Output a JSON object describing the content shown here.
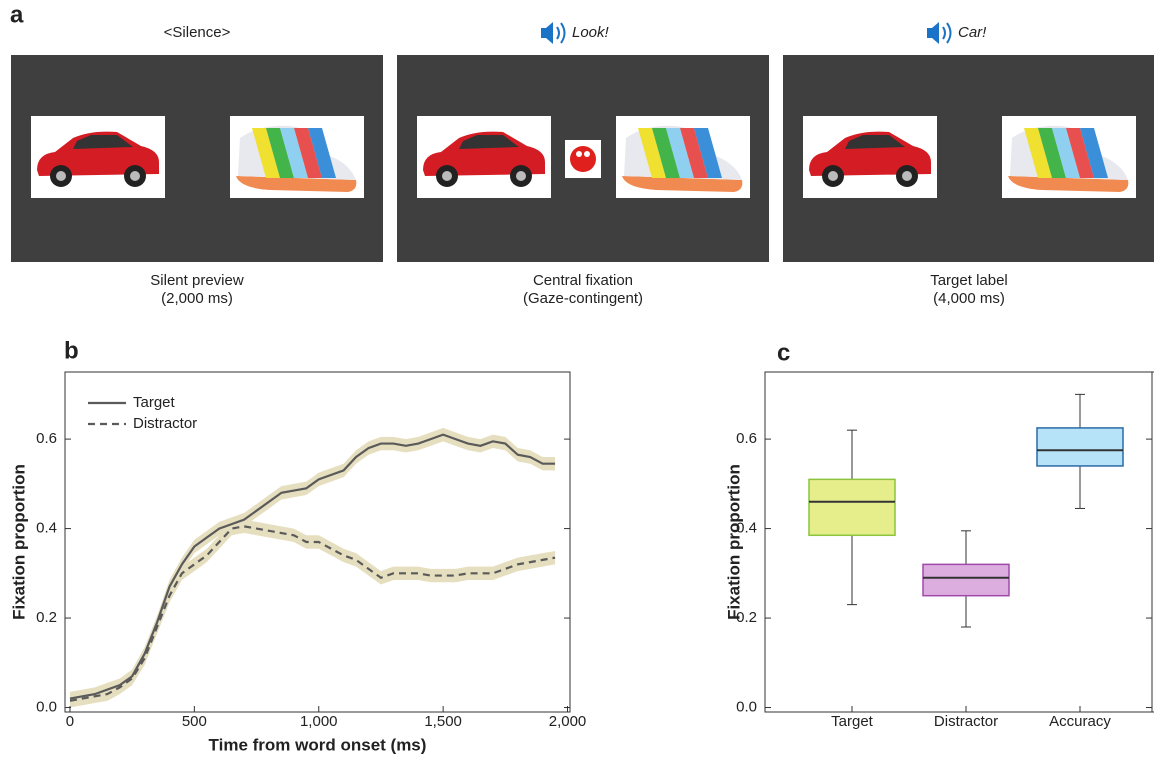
{
  "panel_a": {
    "label": "a",
    "frames": [
      {
        "audio": "<Silence>",
        "caption": "Silent preview",
        "duration": "(2,000 ms)"
      },
      {
        "audio": "Look!",
        "caption": "Central fixation",
        "duration": "(Gaze-contingent)"
      },
      {
        "audio": "Car!",
        "caption": "Target label",
        "duration": "(4,000 ms)"
      }
    ]
  },
  "chart_data": [
    {
      "type": "line",
      "panel_label": "b",
      "xlabel": "Time from word onset (ms)",
      "ylabel": "Fixation proportion",
      "x": [
        0,
        50,
        100,
        150,
        200,
        250,
        300,
        350,
        400,
        450,
        500,
        550,
        600,
        650,
        700,
        750,
        800,
        850,
        900,
        950,
        1000,
        1050,
        1100,
        1150,
        1200,
        1250,
        1300,
        1350,
        1400,
        1450,
        1500,
        1550,
        1600,
        1650,
        1700,
        1750,
        1800,
        1850,
        1900,
        1950
      ],
      "series": [
        {
          "name": "Target",
          "color": "#5a5a5a",
          "dash": false,
          "band": 0.015,
          "band_color": "#e6dfbf",
          "values": [
            0.02,
            0.025,
            0.03,
            0.04,
            0.05,
            0.07,
            0.12,
            0.19,
            0.27,
            0.32,
            0.36,
            0.38,
            0.4,
            0.41,
            0.42,
            0.44,
            0.46,
            0.48,
            0.485,
            0.49,
            0.51,
            0.52,
            0.53,
            0.56,
            0.58,
            0.59,
            0.59,
            0.585,
            0.59,
            0.6,
            0.61,
            0.6,
            0.59,
            0.585,
            0.595,
            0.59,
            0.565,
            0.56,
            0.545,
            0.545
          ]
        },
        {
          "name": "Distractor",
          "color": "#5a5a5a",
          "dash": true,
          "band": 0.015,
          "band_color": "#e6dfbf",
          "values": [
            0.015,
            0.02,
            0.025,
            0.03,
            0.045,
            0.065,
            0.11,
            0.18,
            0.25,
            0.3,
            0.32,
            0.34,
            0.37,
            0.4,
            0.405,
            0.4,
            0.395,
            0.39,
            0.385,
            0.37,
            0.37,
            0.355,
            0.34,
            0.33,
            0.31,
            0.29,
            0.3,
            0.3,
            0.3,
            0.295,
            0.295,
            0.295,
            0.3,
            0.3,
            0.3,
            0.31,
            0.32,
            0.325,
            0.33,
            0.335
          ]
        }
      ],
      "xlim": [
        -20,
        2010
      ],
      "ylim": [
        -0.01,
        0.75
      ],
      "xticks": [
        0,
        500,
        {
          "value": 1000,
          "label": "1,000"
        },
        {
          "value": 1500,
          "label": "1,500"
        },
        {
          "value": 2000,
          "label": "2,000"
        }
      ],
      "yticks": [
        {
          "value": 0,
          "label": "0.0"
        },
        0.2,
        0.4,
        0.6
      ],
      "legend": "upper left"
    },
    {
      "type": "box",
      "panel_label": "c",
      "ylabel": "Fixation proportion",
      "categories": [
        "Target",
        "Distractor",
        "Accuracy"
      ],
      "boxes": [
        {
          "whisker_low": 0.23,
          "q1": 0.385,
          "median": 0.46,
          "q3": 0.51,
          "whisker_high": 0.62,
          "color": "#e6ee8c",
          "edge": "#8cc43c"
        },
        {
          "whisker_low": 0.18,
          "q1": 0.25,
          "median": 0.29,
          "q3": 0.32,
          "whisker_high": 0.395,
          "color": "#dcaee0",
          "edge": "#a04aa8"
        },
        {
          "whisker_low": 0.445,
          "q1": 0.54,
          "median": 0.575,
          "q3": 0.625,
          "whisker_high": 0.7,
          "color": "#b6e3f8",
          "edge": "#2a6aa6"
        }
      ],
      "ylim": [
        -0.01,
        0.75
      ],
      "yticks": [
        {
          "value": 0,
          "label": "0.0"
        },
        0.2,
        0.4,
        0.6
      ]
    }
  ]
}
